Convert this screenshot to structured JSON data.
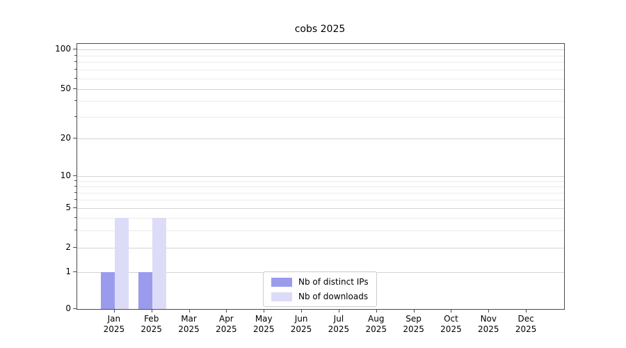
{
  "chart_data": {
    "type": "bar",
    "title": "cobs 2025",
    "x_tick_labels": [
      {
        "month": "Jan",
        "year": "2025"
      },
      {
        "month": "Feb",
        "year": "2025"
      },
      {
        "month": "Mar",
        "year": "2025"
      },
      {
        "month": "Apr",
        "year": "2025"
      },
      {
        "month": "May",
        "year": "2025"
      },
      {
        "month": "Jun",
        "year": "2025"
      },
      {
        "month": "Jul",
        "year": "2025"
      },
      {
        "month": "Aug",
        "year": "2025"
      },
      {
        "month": "Sep",
        "year": "2025"
      },
      {
        "month": "Oct",
        "year": "2025"
      },
      {
        "month": "Nov",
        "year": "2025"
      },
      {
        "month": "Dec",
        "year": "2025"
      }
    ],
    "series": [
      {
        "name": "Nb of distinct IPs",
        "color": "#9b9bee",
        "values": [
          1,
          1,
          0,
          0,
          0,
          0,
          0,
          0,
          0,
          0,
          0,
          0
        ]
      },
      {
        "name": "Nb of downloads",
        "color": "#dcdcf8",
        "values": [
          4,
          4,
          0,
          0,
          0,
          0,
          0,
          0,
          0,
          0,
          0,
          0
        ]
      }
    ],
    "yticks": [
      0,
      1,
      2,
      5,
      10,
      20,
      50,
      100
    ],
    "ylim": [
      0,
      100
    ],
    "yscale": "log-like (0 at baseline)",
    "grid": {
      "horizontal": true,
      "minor_lines": true
    },
    "legend_position": "inside-bottom-center"
  }
}
